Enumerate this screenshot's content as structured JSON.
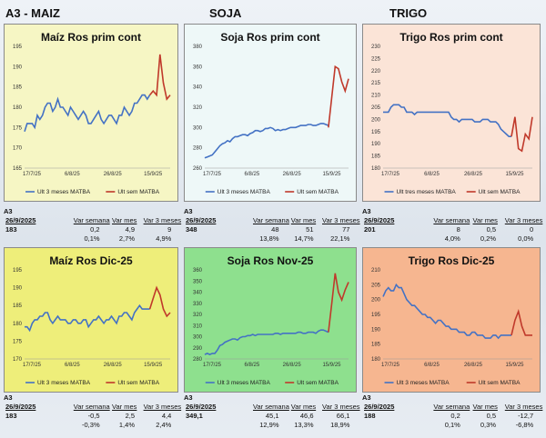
{
  "sections": {
    "maiz": "A3 - MAIZ",
    "soja": "SOJA",
    "trigo": "TRIGO"
  },
  "legend": {
    "a": "Ult 3 meses MATBA",
    "b": "Ult sem MATBA",
    "a_trigo": "Ult tres meses MATBA"
  },
  "colors": {
    "series_a": "#4472c4",
    "series_b": "#c0392b"
  },
  "panels": [
    {
      "id": "maiz-top",
      "title": "Maíz Ros prim cont",
      "bg": "#f6f6c4",
      "legend_a": "Ult 3 meses MATBA",
      "legend_b": "Ult sem MATBA",
      "stats": {
        "a3": "A3",
        "date": "26/9/2025",
        "price": "183",
        "h1": "Var semana",
        "h2": "Var mes",
        "h3": "Var 3 meses",
        "v1": "0,2",
        "v2": "4,9",
        "v3": "9",
        "p1": "0,1%",
        "p2": "2,7%",
        "p3": "4,9%"
      }
    },
    {
      "id": "soja-top",
      "title": "Soja Ros prim cont",
      "bg": "#eef8f8",
      "legend_a": "Ult 3 meses MATBA",
      "legend_b": "Ult sem MATBA",
      "stats": {
        "a3": "A3",
        "date": "26/9/2025",
        "price": "348",
        "h1": "Var semana",
        "h2": "Var mes",
        "h3": "Var 3 meses",
        "v1": "48",
        "v2": "51",
        "v3": "77",
        "p1": "13,8%",
        "p2": "14,7%",
        "p3": "22,1%"
      }
    },
    {
      "id": "trigo-top",
      "title": "Trigo Ros prim cont",
      "bg": "#fbe4d7",
      "legend_a": "Ult tres meses MATBA",
      "legend_b": "Ult sem MATBA",
      "stats": {
        "a3": "A3",
        "date": "26/9/2025",
        "price": "201",
        "h1": "Var semana",
        "h2": "Var mes",
        "h3": "Var 3 meses",
        "v1": "8",
        "v2": "0,5",
        "v3": "0",
        "p1": "4,0%",
        "p2": "0,2%",
        "p3": "0,0%"
      }
    },
    {
      "id": "maiz-bot",
      "title": "Maíz Ros Dic-25",
      "bg": "#eeee7a",
      "legend_a": "Ult 3 meses MATBA",
      "legend_b": "Ult sem MATBA",
      "stats": {
        "a3": "A3",
        "date": "26/9/2025",
        "price": "183",
        "h1": "Var semana",
        "h2": "Var mes",
        "h3": "Var 3 meses",
        "v1": "-0,5",
        "v2": "2,5",
        "v3": "4,4",
        "p1": "-0,3%",
        "p2": "1,4%",
        "p3": "2,4%"
      }
    },
    {
      "id": "soja-bot",
      "title": "Soja Ros Nov-25",
      "bg": "#8ee08e",
      "legend_a": "Ult 3 meses MATBA",
      "legend_b": "Ult sem MATBA",
      "stats": {
        "a3": "A3",
        "date": "26/9/2025",
        "price": "349,1",
        "h1": "Var semana",
        "h2": "Var mes",
        "h3": "Var 3 meses",
        "v1": "45,1",
        "v2": "46,6",
        "v3": "66,1",
        "p1": "12,9%",
        "p2": "13,3%",
        "p3": "18,9%"
      }
    },
    {
      "id": "trigo-bot",
      "title": "Trigo Ros Dic-25",
      "bg": "#f6b690",
      "legend_a": "Ult 3 meses MATBA",
      "legend_b": "Ult sem MATBA",
      "stats": {
        "a3": "A3",
        "date": "26/9/2025",
        "price": "188",
        "h1": "Var semana",
        "h2": "Var mes",
        "h3": "Var 3 meses",
        "v1": "0,2",
        "v2": "0,5",
        "v3": "-12,7",
        "p1": "0,1%",
        "p2": "0,3%",
        "p3": "-6,8%"
      }
    }
  ],
  "chart_data": [
    {
      "type": "line",
      "title": "Maíz Ros prim cont",
      "x_ticks": [
        "17/7/25",
        "6/8/25",
        "26/8/25",
        "15/9/25"
      ],
      "ylim": [
        165,
        195
      ],
      "y_ticks": [
        165,
        170,
        175,
        180,
        185,
        190,
        195
      ],
      "series": [
        {
          "name": "Ult 3 meses MATBA",
          "values": [
            174,
            176,
            176,
            176,
            175,
            178,
            177,
            178,
            180,
            181,
            181,
            179,
            180,
            182,
            180,
            180,
            179,
            178,
            180,
            179,
            178,
            177,
            178,
            179,
            178,
            176,
            176,
            177,
            178,
            179,
            177,
            176,
            177,
            178,
            178,
            177,
            176,
            178,
            178,
            180,
            179,
            178,
            179,
            181,
            181,
            182,
            183,
            183,
            182,
            183
          ]
        },
        {
          "name": "Ult sem MATBA",
          "values": [
            183,
            184,
            183,
            193,
            186,
            182,
            183
          ]
        }
      ]
    },
    {
      "type": "line",
      "title": "Soja Ros prim cont",
      "x_ticks": [
        "17/7/25",
        "6/8/25",
        "26/8/25",
        "15/9/25"
      ],
      "ylim": [
        260,
        380
      ],
      "y_ticks": [
        260,
        280,
        300,
        320,
        340,
        360,
        380
      ],
      "series": [
        {
          "name": "Ult 3 meses MATBA",
          "values": [
            270,
            271,
            272,
            273,
            276,
            279,
            282,
            284,
            285,
            287,
            286,
            289,
            291,
            291,
            292,
            293,
            293,
            292,
            294,
            295,
            297,
            297,
            296,
            297,
            299,
            299,
            300,
            299,
            297,
            298,
            297,
            298,
            298,
            299,
            300,
            300,
            300,
            301,
            302,
            302,
            302,
            303,
            303,
            302,
            302,
            303,
            304,
            304,
            303,
            302
          ]
        },
        {
          "name": "Ult sem MATBA",
          "values": [
            300,
            330,
            360,
            358,
            345,
            336,
            348
          ]
        }
      ]
    },
    {
      "type": "line",
      "title": "Trigo Ros prim cont",
      "x_ticks": [
        "17/7/25",
        "6/8/25",
        "26/8/25",
        "15/9/25"
      ],
      "ylim": [
        180,
        230
      ],
      "y_ticks": [
        180,
        185,
        190,
        195,
        200,
        205,
        210,
        215,
        220,
        225,
        230
      ],
      "series": [
        {
          "name": "Ult tres meses MATBA",
          "values": [
            203,
            203,
            203,
            205,
            206,
            206,
            206,
            205,
            205,
            203,
            203,
            203,
            202,
            203,
            203,
            203,
            203,
            203,
            203,
            203,
            203,
            203,
            203,
            203,
            203,
            203,
            201,
            200,
            200,
            199,
            200,
            200,
            200,
            200,
            200,
            199,
            199,
            199,
            200,
            200,
            200,
            199,
            199,
            199,
            198,
            196,
            195,
            194,
            193,
            193
          ]
        },
        {
          "name": "Ult sem MATBA",
          "values": [
            193,
            201,
            188,
            187,
            194,
            192,
            201
          ]
        }
      ]
    },
    {
      "type": "line",
      "title": "Maíz Ros Dic-25",
      "x_ticks": [
        "17/7/25",
        "6/8/25",
        "26/8/25",
        "15/9/25"
      ],
      "ylim": [
        170,
        195
      ],
      "y_ticks": [
        170,
        175,
        180,
        185,
        190,
        195
      ],
      "series": [
        {
          "name": "Ult 3 meses MATBA",
          "values": [
            179,
            179,
            178,
            180,
            181,
            181,
            182,
            182,
            183,
            183,
            181,
            180,
            181,
            182,
            181,
            181,
            181,
            180,
            180,
            181,
            181,
            180,
            180,
            181,
            181,
            179,
            180,
            181,
            181,
            182,
            181,
            180,
            181,
            181,
            182,
            181,
            180,
            182,
            182,
            183,
            183,
            182,
            181,
            183,
            184,
            185,
            184,
            184,
            184,
            184
          ]
        },
        {
          "name": "Ult sem MATBA",
          "values": [
            184,
            187,
            190,
            188,
            184,
            182,
            183
          ]
        }
      ]
    },
    {
      "type": "line",
      "title": "Soja Ros Nov-25",
      "x_ticks": [
        "17/7/25",
        "6/8/25",
        "26/8/25",
        "15/9/25"
      ],
      "ylim": [
        280,
        360
      ],
      "y_ticks": [
        280,
        290,
        300,
        310,
        320,
        330,
        340,
        350,
        360
      ],
      "series": [
        {
          "name": "Ult 3 meses MATBA",
          "values": [
            284,
            285,
            284,
            285,
            285,
            288,
            292,
            293,
            295,
            296,
            297,
            298,
            298,
            297,
            299,
            300,
            300,
            301,
            301,
            302,
            301,
            302,
            302,
            302,
            302,
            302,
            302,
            302,
            303,
            303,
            302,
            303,
            303,
            303,
            303,
            303,
            303,
            304,
            304,
            303,
            303,
            304,
            304,
            304,
            303,
            305,
            306,
            306,
            305,
            304
          ]
        },
        {
          "name": "Ult sem MATBA",
          "values": [
            304,
            330,
            357,
            340,
            333,
            342,
            349
          ]
        }
      ]
    },
    {
      "type": "line",
      "title": "Trigo Ros Dic-25",
      "x_ticks": [
        "17/7/25",
        "6/8/25",
        "26/8/25",
        "15/9/25"
      ],
      "ylim": [
        180,
        210
      ],
      "y_ticks": [
        180,
        185,
        190,
        195,
        200,
        205,
        210
      ],
      "series": [
        {
          "name": "Ult 3 meses MATBA",
          "values": [
            201,
            203,
            204,
            203,
            203,
            205,
            204,
            204,
            202,
            200,
            199,
            198,
            198,
            197,
            196,
            195,
            195,
            194,
            194,
            193,
            192,
            193,
            193,
            192,
            191,
            191,
            190,
            190,
            190,
            189,
            189,
            189,
            188,
            188,
            189,
            189,
            188,
            188,
            188,
            187,
            187,
            187,
            188,
            188,
            187,
            188,
            188,
            188,
            188,
            188
          ]
        },
        {
          "name": "Ult sem MATBA",
          "values": [
            188,
            193,
            196,
            191,
            188,
            188,
            188
          ]
        }
      ]
    }
  ]
}
